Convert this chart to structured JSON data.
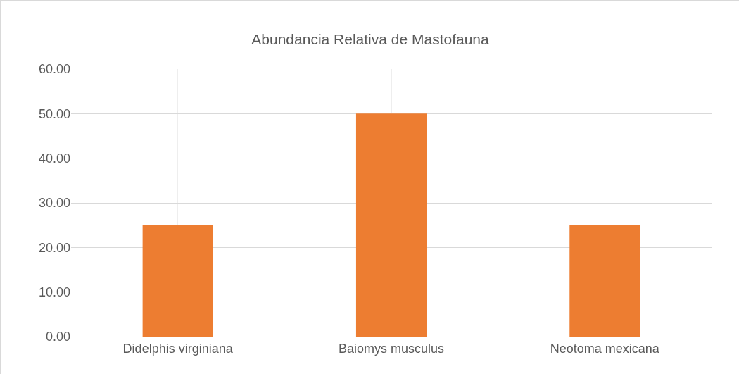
{
  "chart_data": {
    "type": "bar",
    "title": "Abundancia Relativa de Mastofauna",
    "categories": [
      "Didelphis virginiana",
      "Baiomys musculus",
      "Neotoma mexicana"
    ],
    "values": [
      25,
      50,
      25
    ],
    "color": "#ed7d31",
    "ylim": [
      0,
      60
    ],
    "yticks": [
      {
        "value": 0,
        "label": "0.00"
      },
      {
        "value": 10,
        "label": "10.00"
      },
      {
        "value": 20,
        "label": "20.00"
      },
      {
        "value": 30,
        "label": "30.00"
      },
      {
        "value": 40,
        "label": "40.00"
      },
      {
        "value": 50,
        "label": "50.00"
      },
      {
        "value": 60,
        "label": "60.00"
      }
    ],
    "grid": true
  }
}
